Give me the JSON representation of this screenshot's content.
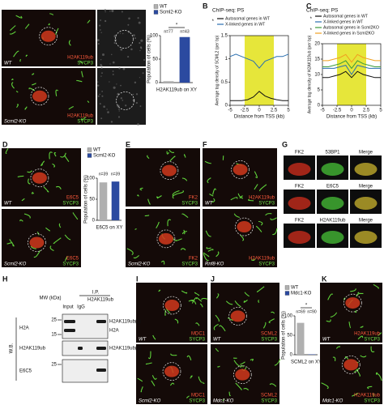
{
  "chart_data": [
    {
      "type": "bar",
      "categories": [
        "WT",
        "Scml2-KO"
      ],
      "colors": [
        "#b0b0b0",
        "#2b4aa0"
      ],
      "values": [
        3,
        97
      ],
      "ylim": [
        0,
        100
      ],
      "yticks": [
        0,
        50,
        100
      ],
      "ylabel": "Population of cells (%)",
      "xlabel": "H2AK119ub on XY",
      "n_labels": [
        "n=77",
        "n=43"
      ],
      "significance": "*"
    },
    {
      "type": "line",
      "title": "ChIP-seq: PS",
      "x": [
        -5,
        -4,
        -3,
        -2,
        -1,
        0,
        1,
        2,
        3,
        4,
        5
      ],
      "xlim": [
        -5,
        5
      ],
      "xticks": [
        -5,
        -2.5,
        0,
        2.5,
        5
      ],
      "ylim": [
        0,
        1.5
      ],
      "yticks": [
        0,
        0.5,
        1,
        1.5
      ],
      "xlabel": "Distance from TSS (kb)",
      "ylabel": "Average tag density of SCML2 (per bp)",
      "highlight": [
        -2.5,
        2.5
      ],
      "highlight_color": "#e6e63a",
      "significance": [
        "*"
      ],
      "series": [
        {
          "name": "Autosomal genes in WT",
          "color": "#111111",
          "values": [
            0.1,
            0.1,
            0.1,
            0.12,
            0.18,
            0.3,
            0.2,
            0.15,
            0.12,
            0.1,
            0.1
          ]
        },
        {
          "name": "X-linked genes in WT",
          "color": "#2a6fb0",
          "values": [
            1.05,
            1.1,
            1.05,
            1.0,
            0.95,
            0.8,
            0.95,
            1.0,
            1.05,
            1.05,
            1.1
          ]
        }
      ]
    },
    {
      "type": "line",
      "title": "ChIP-seq: PS",
      "x": [
        -5,
        -4,
        -3,
        -2,
        -1,
        0,
        1,
        2,
        3,
        4,
        5
      ],
      "xlim": [
        -5,
        5
      ],
      "xticks": [
        -5,
        -2.5,
        0,
        2.5,
        5
      ],
      "ylim": [
        0,
        20
      ],
      "yticks": [
        0,
        5,
        10,
        15,
        20
      ],
      "xlabel": "Distance from TSS (kb)",
      "ylabel": "Average tag density of H2AK119ub (per bp)",
      "highlight": [
        -2.5,
        2.5
      ],
      "highlight_color": "#e6e63a",
      "significance": [
        "*",
        "*"
      ],
      "series": [
        {
          "name": "Autosomal genes in WT",
          "color": "#111111",
          "values": [
            9,
            9,
            9.5,
            10,
            11,
            9,
            11,
            10,
            9.5,
            9,
            9
          ]
        },
        {
          "name": "X-linked genes in WT",
          "color": "#2a6fb0",
          "values": [
            12,
            12,
            12,
            12.5,
            13,
            10,
            13,
            12.5,
            12,
            12,
            12
          ]
        },
        {
          "name": "Autosomal genes in Scml2KO",
          "color": "#3a9a3a",
          "values": [
            12.5,
            12.5,
            13,
            13.5,
            14.5,
            12,
            14.5,
            13.5,
            13,
            12.5,
            12.5
          ]
        },
        {
          "name": "X-linked genes in Scml2KO",
          "color": "#f0a020",
          "values": [
            14.5,
            14.5,
            15,
            15.5,
            16.5,
            14,
            16.5,
            15.5,
            15,
            14.5,
            14.5
          ]
        }
      ]
    },
    {
      "type": "bar",
      "categories": [
        "WT",
        "Scml2-KO"
      ],
      "colors": [
        "#b0b0b0",
        "#2b4aa0"
      ],
      "values": [
        90,
        92
      ],
      "ylim": [
        0,
        100
      ],
      "yticks": [
        0,
        50,
        100
      ],
      "ylabel": "Population of cells (%)",
      "xlabel": "E6C5 on XY",
      "n_labels": [
        "n=39",
        "n=39"
      ]
    },
    {
      "type": "bar",
      "categories": [
        "WT",
        "Mdc1-KO"
      ],
      "colors": [
        "#b0b0b0",
        "#2b4aa0"
      ],
      "values": [
        82,
        1
      ],
      "ylim": [
        0,
        100
      ],
      "yticks": [
        0,
        50,
        100
      ],
      "ylabel": "Population of cells (%)",
      "xlabel": "SCML2 on XY",
      "n_labels": [
        "n=69",
        "n=90"
      ],
      "significance": "*"
    }
  ],
  "panel_letters": [
    "A",
    "B",
    "C",
    "D",
    "E",
    "F",
    "G",
    "H",
    "I",
    "J",
    "K"
  ],
  "images": [
    {
      "stains": [
        "H2AK119ub",
        "SYCP3"
      ],
      "genotype": "WT"
    },
    {
      "stains": []
    },
    {
      "stains": [
        "H2AK119ub",
        "SYCP3"
      ],
      "genotype": "Scml2-KO"
    },
    {
      "stains": []
    },
    {
      "stains": [
        "E6C5",
        "SYCP3"
      ],
      "genotype": "WT"
    },
    {
      "stains": [
        "E6C5",
        "SYCP3"
      ],
      "genotype": "Scml2-KO"
    },
    {
      "stains": [
        "FK2",
        "SYCP3"
      ]
    },
    {
      "stains": [
        "FK2",
        "SYCP3"
      ],
      "genotype": "Scml2-KO"
    },
    {
      "stains": [
        "H2AK119ub",
        "SYCP3"
      ],
      "genotype": "WT"
    },
    {
      "stains": [
        "H2AK119ub",
        "SYCP3"
      ],
      "genotype": "Rnf8-KO"
    },
    {
      "stains": [
        "MDC1",
        "SYCP3"
      ],
      "genotype": "WT"
    },
    {
      "stains": [
        "MDC1",
        "SYCP3"
      ],
      "genotype": "Scml2-KO"
    },
    {
      "stains": [
        "SCML2",
        "SYCP3"
      ],
      "genotype": "WT"
    },
    {
      "stains": [
        "SCML2",
        "SYCP3"
      ],
      "genotype": "Mdc1-KO"
    },
    {
      "stains": [
        "H2AK119ub",
        "SYCP3"
      ],
      "genotype": "WT"
    },
    {
      "stains": [
        "H2AK119ub",
        "SYCP3"
      ],
      "genotype": "Mdc1-KO"
    }
  ],
  "g_panel": {
    "labels": [
      "FK2",
      "53BP1",
      "Merge",
      "FK2",
      "E6C5",
      "Merge",
      "FK2",
      "H2AK119ub",
      "Merge"
    ]
  },
  "blot": {
    "mw_title": "MW (kDa)",
    "ip": "I.P.",
    "ip_target": "H2AK119ub",
    "lanes": [
      "Input",
      "IgG",
      "H2AK119ub"
    ],
    "wb": "W.B.",
    "rows": [
      "H2A",
      "H2AK119ub",
      "E6C5"
    ],
    "mw": [
      25,
      15,
      25
    ],
    "bands": [
      "H2AK119ub(1)",
      "H2A",
      "H2AK119ub(1)"
    ]
  }
}
